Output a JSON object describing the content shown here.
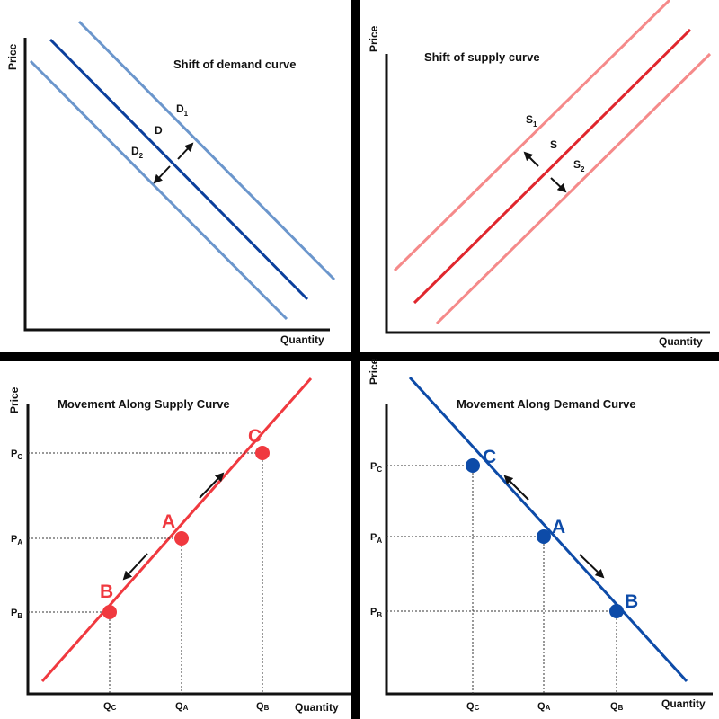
{
  "colors": {
    "demand_light": "#6b96cc",
    "demand_dark": "#0b3f9c",
    "supply_light": "#f58a8a",
    "supply_dark": "#e0262d",
    "point_red": "#f0393f",
    "point_blue": "#0d4ba8",
    "background": "#ffffff",
    "divider": "#000000"
  },
  "panels": {
    "demand_shift": {
      "title": "Shift of demand curve",
      "y_axis_label": "Price",
      "x_axis_label": "Quantity",
      "curves": [
        {
          "letter": "D",
          "sub": "1"
        },
        {
          "letter": "D",
          "sub": ""
        },
        {
          "letter": "D",
          "sub": "2"
        }
      ]
    },
    "supply_shift": {
      "title": "Shift of supply curve",
      "y_axis_label": "Price",
      "x_axis_label": "Quantity",
      "curves": [
        {
          "letter": "S",
          "sub": "1"
        },
        {
          "letter": "S",
          "sub": ""
        },
        {
          "letter": "S",
          "sub": "2"
        }
      ]
    },
    "supply_movement": {
      "title": "Movement Along Supply Curve",
      "y_axis_label": "Price",
      "x_axis_label": "Quantity",
      "points": [
        "A",
        "B",
        "C"
      ],
      "price_ticks": [
        {
          "letter": "P",
          "sub": "C"
        },
        {
          "letter": "P",
          "sub": "A"
        },
        {
          "letter": "P",
          "sub": "B"
        }
      ],
      "quantity_ticks": [
        {
          "letter": "Q",
          "sub": "C"
        },
        {
          "letter": "Q",
          "sub": "A"
        },
        {
          "letter": "Q",
          "sub": "B"
        }
      ]
    },
    "demand_movement": {
      "title": "Movement Along Demand Curve",
      "y_axis_label": "Price",
      "x_axis_label": "Quantity",
      "points": [
        "A",
        "B",
        "C"
      ],
      "price_ticks": [
        {
          "letter": "P",
          "sub": "C"
        },
        {
          "letter": "P",
          "sub": "A"
        },
        {
          "letter": "P",
          "sub": "B"
        }
      ],
      "quantity_ticks": [
        {
          "letter": "Q",
          "sub": "C"
        },
        {
          "letter": "Q",
          "sub": "A"
        },
        {
          "letter": "Q",
          "sub": "B"
        }
      ]
    }
  }
}
